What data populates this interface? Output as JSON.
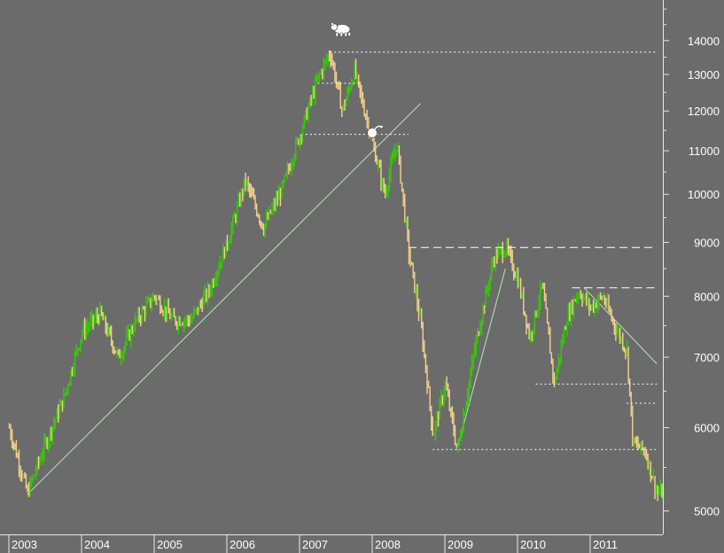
{
  "chart_data": {
    "type": "candlestick",
    "title": "",
    "xlabel": "",
    "ylabel": "",
    "y_scale": "log",
    "ylim": [
      4750,
      15300
    ],
    "xlim": [
      "2003-01",
      "2011-12"
    ],
    "y_ticks": [
      5000,
      6000,
      7000,
      8000,
      9000,
      10000,
      11000,
      12000,
      13000,
      14000
    ],
    "x_ticks": [
      "2003",
      "2004",
      "2005",
      "2006",
      "2007",
      "2008",
      "2009",
      "2010",
      "2011"
    ],
    "grid": false,
    "colors": {
      "background": "#6b6b6b",
      "up": "#33cc00",
      "down": "#f5d28a",
      "lines": "#ffffff",
      "trendline": "#b4e6b4"
    },
    "series": [
      {
        "values": [
          [
            "2003-01",
            6000
          ],
          [
            "2003-04",
            5200
          ],
          [
            "2003-07",
            5800
          ],
          [
            "2003-10",
            6400
          ],
          [
            "2004-01",
            7400
          ],
          [
            "2004-04",
            7700
          ],
          [
            "2004-07",
            7000
          ],
          [
            "2004-10",
            7600
          ],
          [
            "2005-01",
            8000
          ],
          [
            "2005-04",
            7600
          ],
          [
            "2005-07",
            7600
          ],
          [
            "2005-10",
            8100
          ],
          [
            "2006-01",
            9000
          ],
          [
            "2006-04",
            10300
          ],
          [
            "2006-07",
            9300
          ],
          [
            "2006-10",
            10100
          ],
          [
            "2007-01",
            11400
          ],
          [
            "2007-04",
            12900
          ],
          [
            "2007-06",
            13650
          ],
          [
            "2007-08",
            12000
          ],
          [
            "2007-10",
            13100
          ],
          [
            "2007-12",
            11800
          ],
          [
            "2008-01",
            11200
          ],
          [
            "2008-03",
            10000
          ],
          [
            "2008-05",
            11200
          ],
          [
            "2008-07",
            8800
          ],
          [
            "2008-09",
            7500
          ],
          [
            "2008-11",
            5900
          ],
          [
            "2009-01",
            6600
          ],
          [
            "2009-03",
            5700
          ],
          [
            "2009-06",
            7200
          ],
          [
            "2009-09",
            8700
          ],
          [
            "2009-11",
            8900
          ],
          [
            "2010-01",
            8300
          ],
          [
            "2010-03",
            7300
          ],
          [
            "2010-05",
            8200
          ],
          [
            "2010-07",
            6600
          ],
          [
            "2010-09",
            7600
          ],
          [
            "2010-11",
            8100
          ],
          [
            "2011-01",
            7800
          ],
          [
            "2011-03",
            8000
          ],
          [
            "2011-05",
            7500
          ],
          [
            "2011-07",
            7100
          ],
          [
            "2011-08",
            5800
          ],
          [
            "2011-10",
            5700
          ],
          [
            "2011-12",
            5200
          ]
        ]
      }
    ],
    "annotations": [
      {
        "type": "hline",
        "value": 13650,
        "from": "2007-06",
        "to": "2011-12",
        "style": "dotted"
      },
      {
        "type": "hline",
        "value": 12750,
        "from": "2007-04",
        "to": "2007-11",
        "style": "dotted"
      },
      {
        "type": "hline",
        "value": 11400,
        "from": "2007-02",
        "to": "2008-07",
        "style": "dotted"
      },
      {
        "type": "hline",
        "value": 8900,
        "from": "2008-07",
        "to": "2011-12",
        "style": "dashed"
      },
      {
        "type": "hline",
        "value": 8150,
        "from": "2010-10",
        "to": "2011-12",
        "style": "dashed"
      },
      {
        "type": "hline",
        "value": 6600,
        "from": "2010-04",
        "to": "2011-12",
        "style": "dotted"
      },
      {
        "type": "hline",
        "value": 6330,
        "from": "2011-07",
        "to": "2011-12",
        "style": "dotted"
      },
      {
        "type": "hline",
        "value": 5720,
        "from": "2008-11",
        "to": "2011-12",
        "style": "dotted"
      },
      {
        "type": "trendline",
        "from": [
          "2003-04",
          5180
        ],
        "to": [
          "2008-09",
          12200
        ]
      },
      {
        "type": "trendline",
        "from": [
          "2009-03",
          5720
        ],
        "to": [
          "2009-11",
          8500
        ]
      },
      {
        "type": "trendline",
        "from": [
          "2010-12",
          8150
        ],
        "to": [
          "2011-12",
          6900
        ]
      }
    ],
    "markers": [
      {
        "icon": "bear-icon",
        "date": "2007-06",
        "value": 14800
      },
      {
        "icon": "bomb-icon",
        "date": "2008-01",
        "value": 11150
      }
    ]
  }
}
